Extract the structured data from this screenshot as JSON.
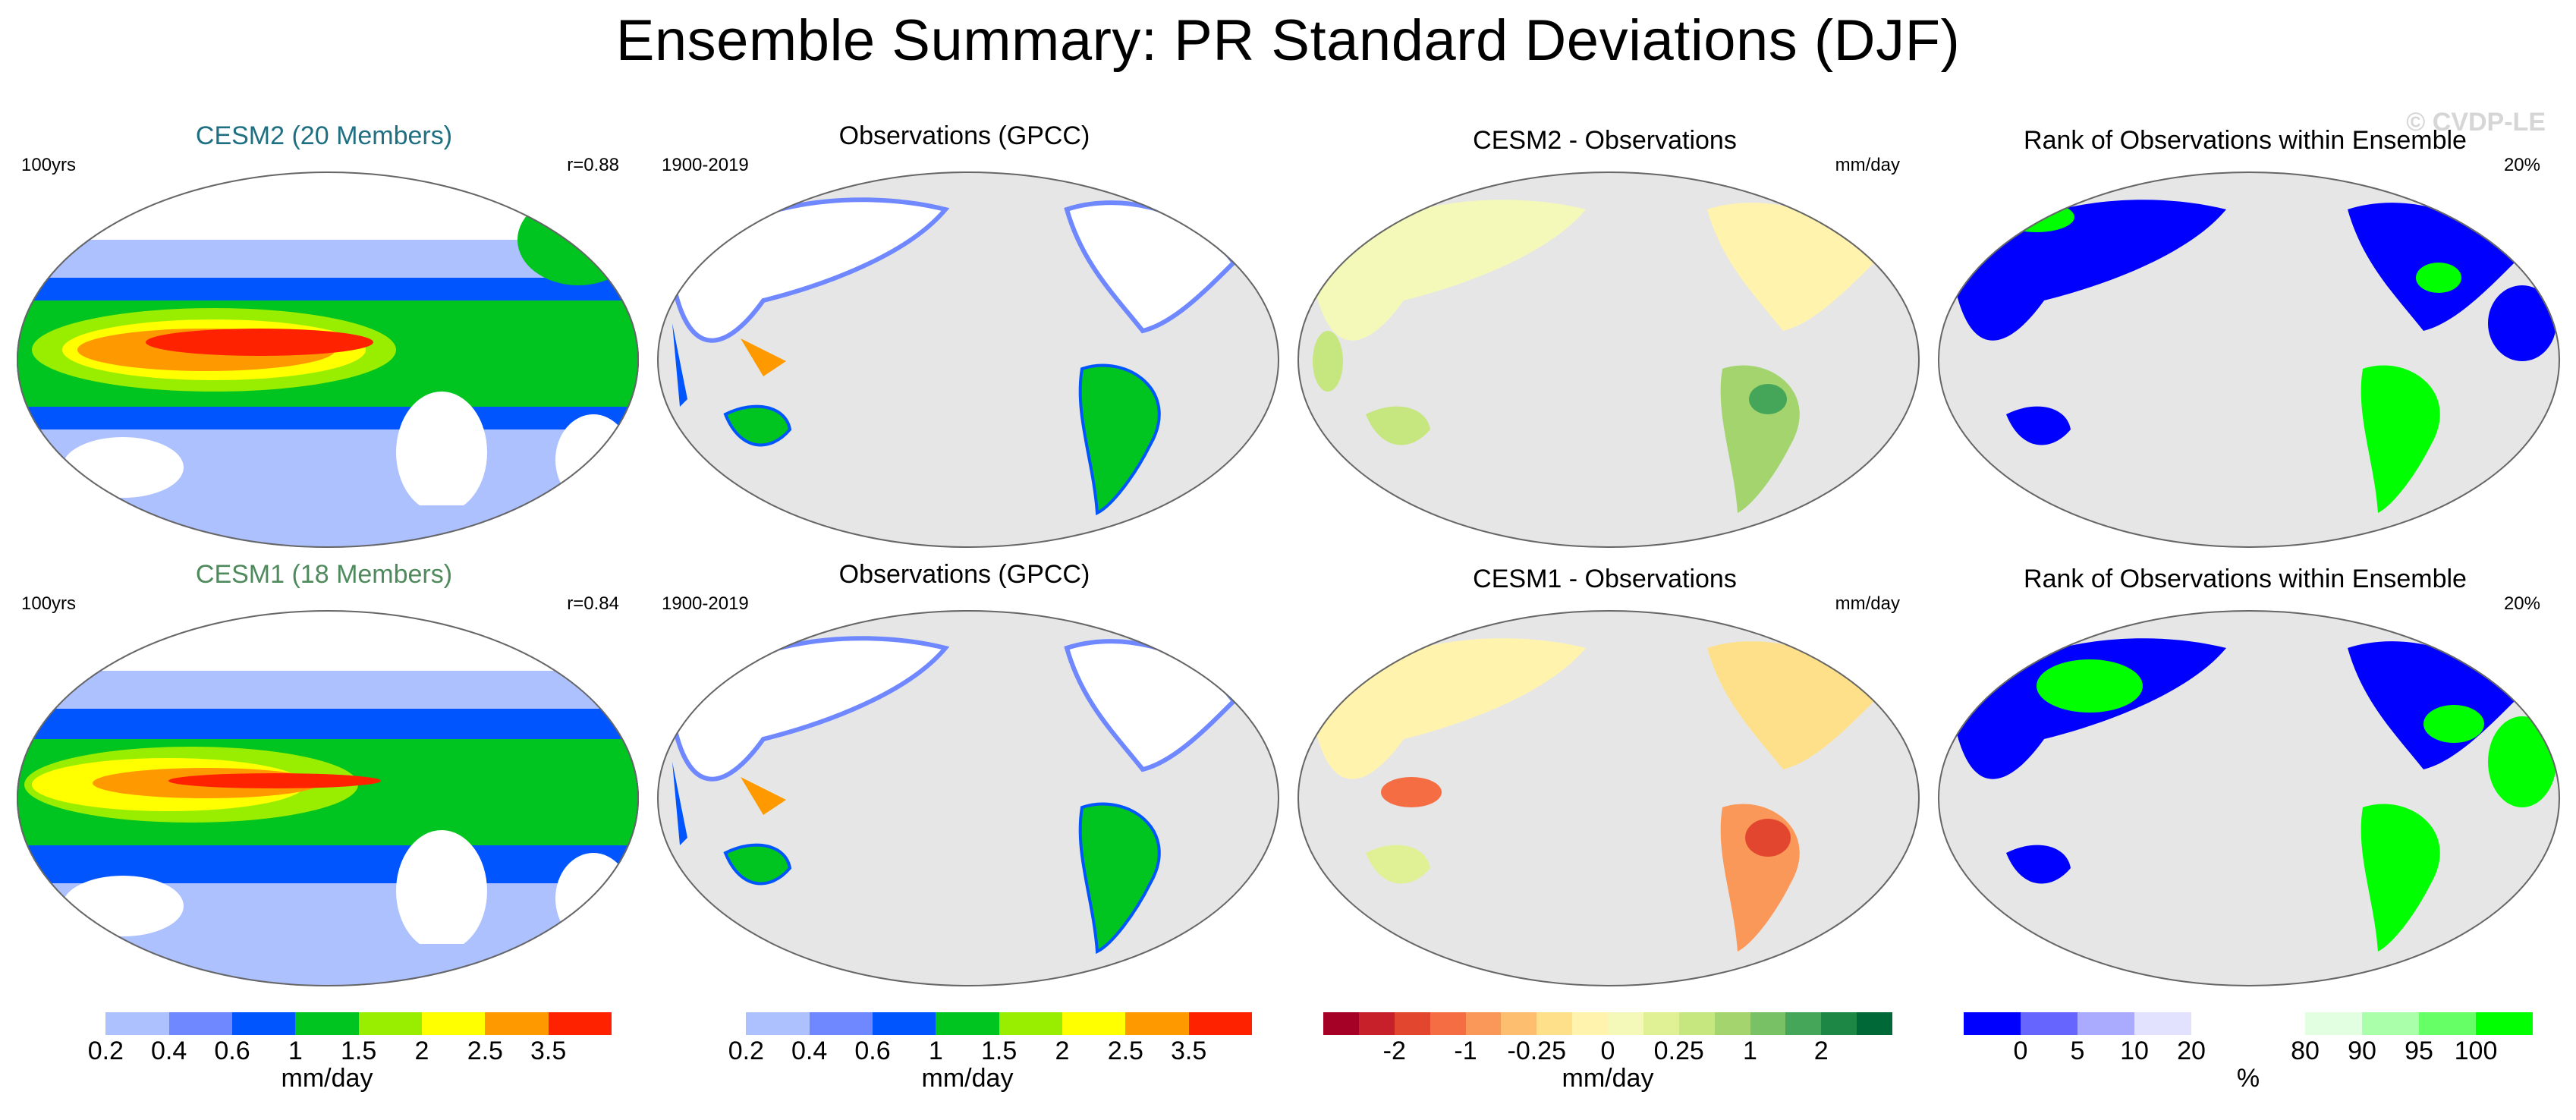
{
  "title": "Ensemble Summary: PR Standard Deviations (DJF)",
  "watermark": "© CVDP-LE",
  "colors": {
    "ocean_gray": "#e6e6e6",
    "white": "#ffffff",
    "blue_light": "#aec1ff",
    "blue_mid": "#6f87ff",
    "blue": "#0055ff",
    "green": "#00c41f",
    "lime": "#99ee00",
    "yellow": "#ffff00",
    "orange": "#ff9900",
    "red": "#ff2200",
    "rank_blue": "#0000ff",
    "rank_green": "#00ff00"
  },
  "panels": {
    "r1c1": {
      "title": "CESM2 (20 Members)",
      "left": "100yrs",
      "right": "r=0.88"
    },
    "r1c2": {
      "title": "Observations (GPCC)",
      "left": "1900-2019",
      "right": ""
    },
    "r1c3": {
      "title": "CESM2 - Observations",
      "left": "",
      "right": "mm/day"
    },
    "r1c4": {
      "title": "Rank of Observations within Ensemble",
      "left": "",
      "right": "20%"
    },
    "r2c1": {
      "title": "CESM1 (18 Members)",
      "left": "100yrs",
      "right": "r=0.84"
    },
    "r2c2": {
      "title": "Observations (GPCC)",
      "left": "1900-2019",
      "right": ""
    },
    "r2c3": {
      "title": "CESM1 - Observations",
      "left": "",
      "right": "mm/day"
    },
    "r2c4": {
      "title": "Rank of Observations within Ensemble",
      "left": "",
      "right": "20%"
    }
  },
  "colorbars": {
    "std": {
      "colors": [
        "#ffffff",
        "#aec1ff",
        "#6f87ff",
        "#0055ff",
        "#00c41f",
        "#99ee00",
        "#ffff00",
        "#ff9900",
        "#ff2200"
      ],
      "ticks": [
        "0.2",
        "0.4",
        "0.6",
        "1",
        "1.5",
        "2",
        "2.5",
        "3.5"
      ],
      "unit": "mm/day"
    },
    "diff": {
      "colors": [
        "#a50026",
        "#c8202a",
        "#e3462f",
        "#f46d43",
        "#f99858",
        "#fdbe70",
        "#fee08b",
        "#fff3ad",
        "#f4f9ba",
        "#e0f095",
        "#c6e77f",
        "#a3d46d",
        "#78c265",
        "#45a65a",
        "#1d8745",
        "#006837"
      ],
      "ticks": [
        "-2",
        "-1",
        "-0.25",
        "0",
        "0.25",
        "1",
        "2"
      ],
      "unit": "mm/day"
    },
    "rank": {
      "colors": [
        "#0000ff",
        "#6666ff",
        "#aaaaff",
        "#e2e2ff",
        "#ffffff",
        "#ffffff",
        "#e2ffe2",
        "#aaffaa",
        "#66ff66",
        "#00ff00"
      ],
      "ticks": [
        "0",
        "5",
        "10",
        "20",
        "80",
        "90",
        "95",
        "100"
      ],
      "unit": "%"
    }
  }
}
